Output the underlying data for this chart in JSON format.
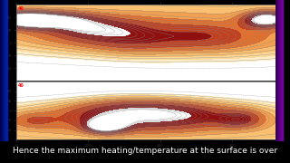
{
  "bg_color": "#000000",
  "map_bg": "#ffffff",
  "caption_text": "Hence the maximum heating/temperature at the surface is over",
  "caption_color": "#ffffff",
  "caption_fontsize": 6.5,
  "caption_bg": "#111111",
  "sidebar_left": "#000033",
  "sidebar_right": "#1a0033",
  "warm_levels": [
    0.15,
    0.3,
    0.5,
    0.75,
    1.1,
    1.6,
    2.3,
    3.2
  ],
  "warm_colors": [
    "#fdedc8",
    "#fbd89a",
    "#f8c070",
    "#f0a050",
    "#e07030",
    "#c04020",
    "#901010",
    "#5a0000"
  ],
  "contour_color": "#888888",
  "contour_linewidth": 0.25,
  "n_contour_lines": 16,
  "tick_fontsize": 3
}
